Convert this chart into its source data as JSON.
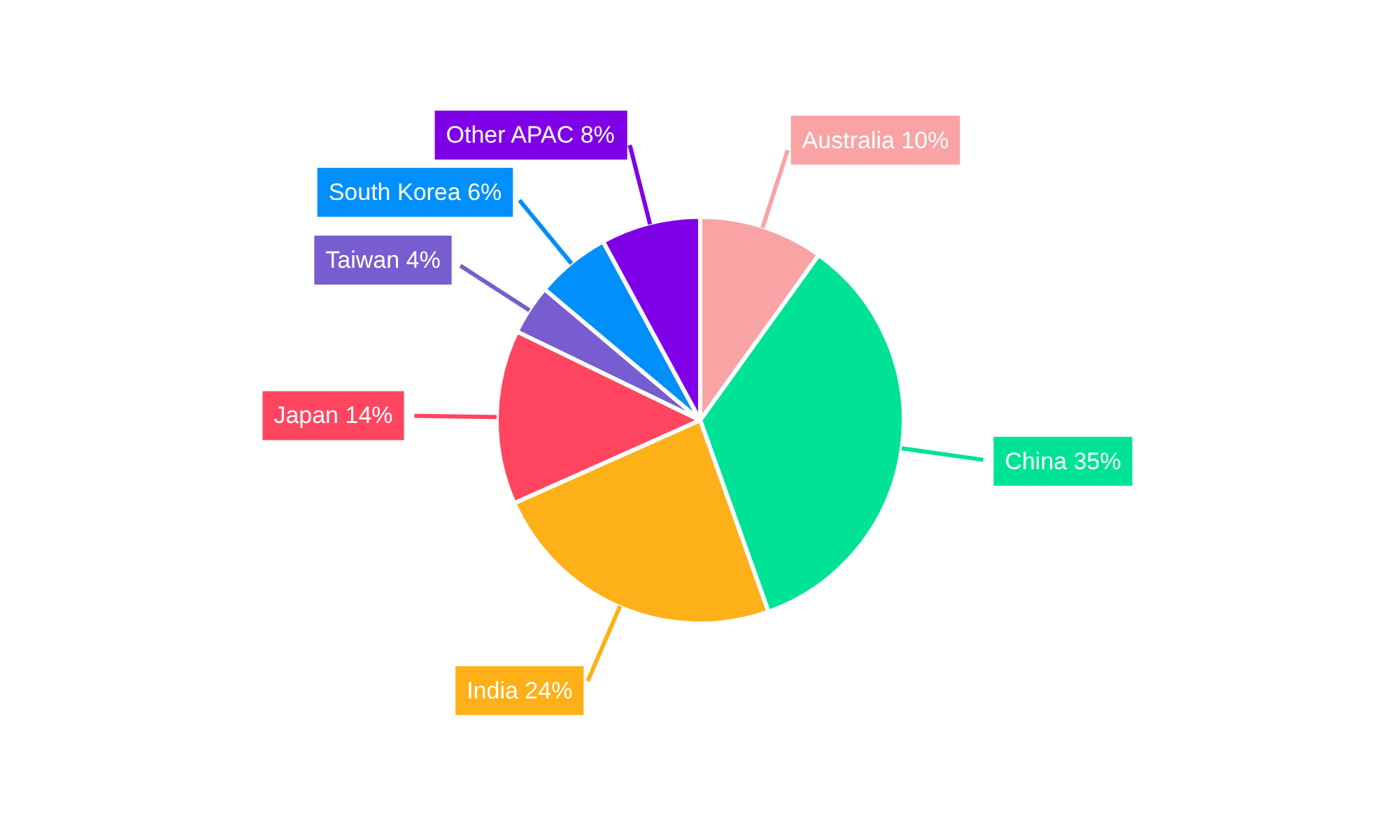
{
  "chart_data": {
    "type": "pie",
    "categories": [
      "Australia",
      "China",
      "India",
      "Japan",
      "Taiwan",
      "South Korea",
      "Other APAC"
    ],
    "values": [
      10,
      35,
      24,
      14,
      4,
      6,
      8
    ],
    "colors": [
      "#f9a3a4",
      "#00e396",
      "#feb019",
      "#ff4560",
      "#775dd0",
      "#008ffb",
      "#7f00e6"
    ],
    "value_labels": [
      "10%",
      "35%",
      "24%",
      "14%",
      "4%",
      "6%",
      "8%"
    ]
  }
}
